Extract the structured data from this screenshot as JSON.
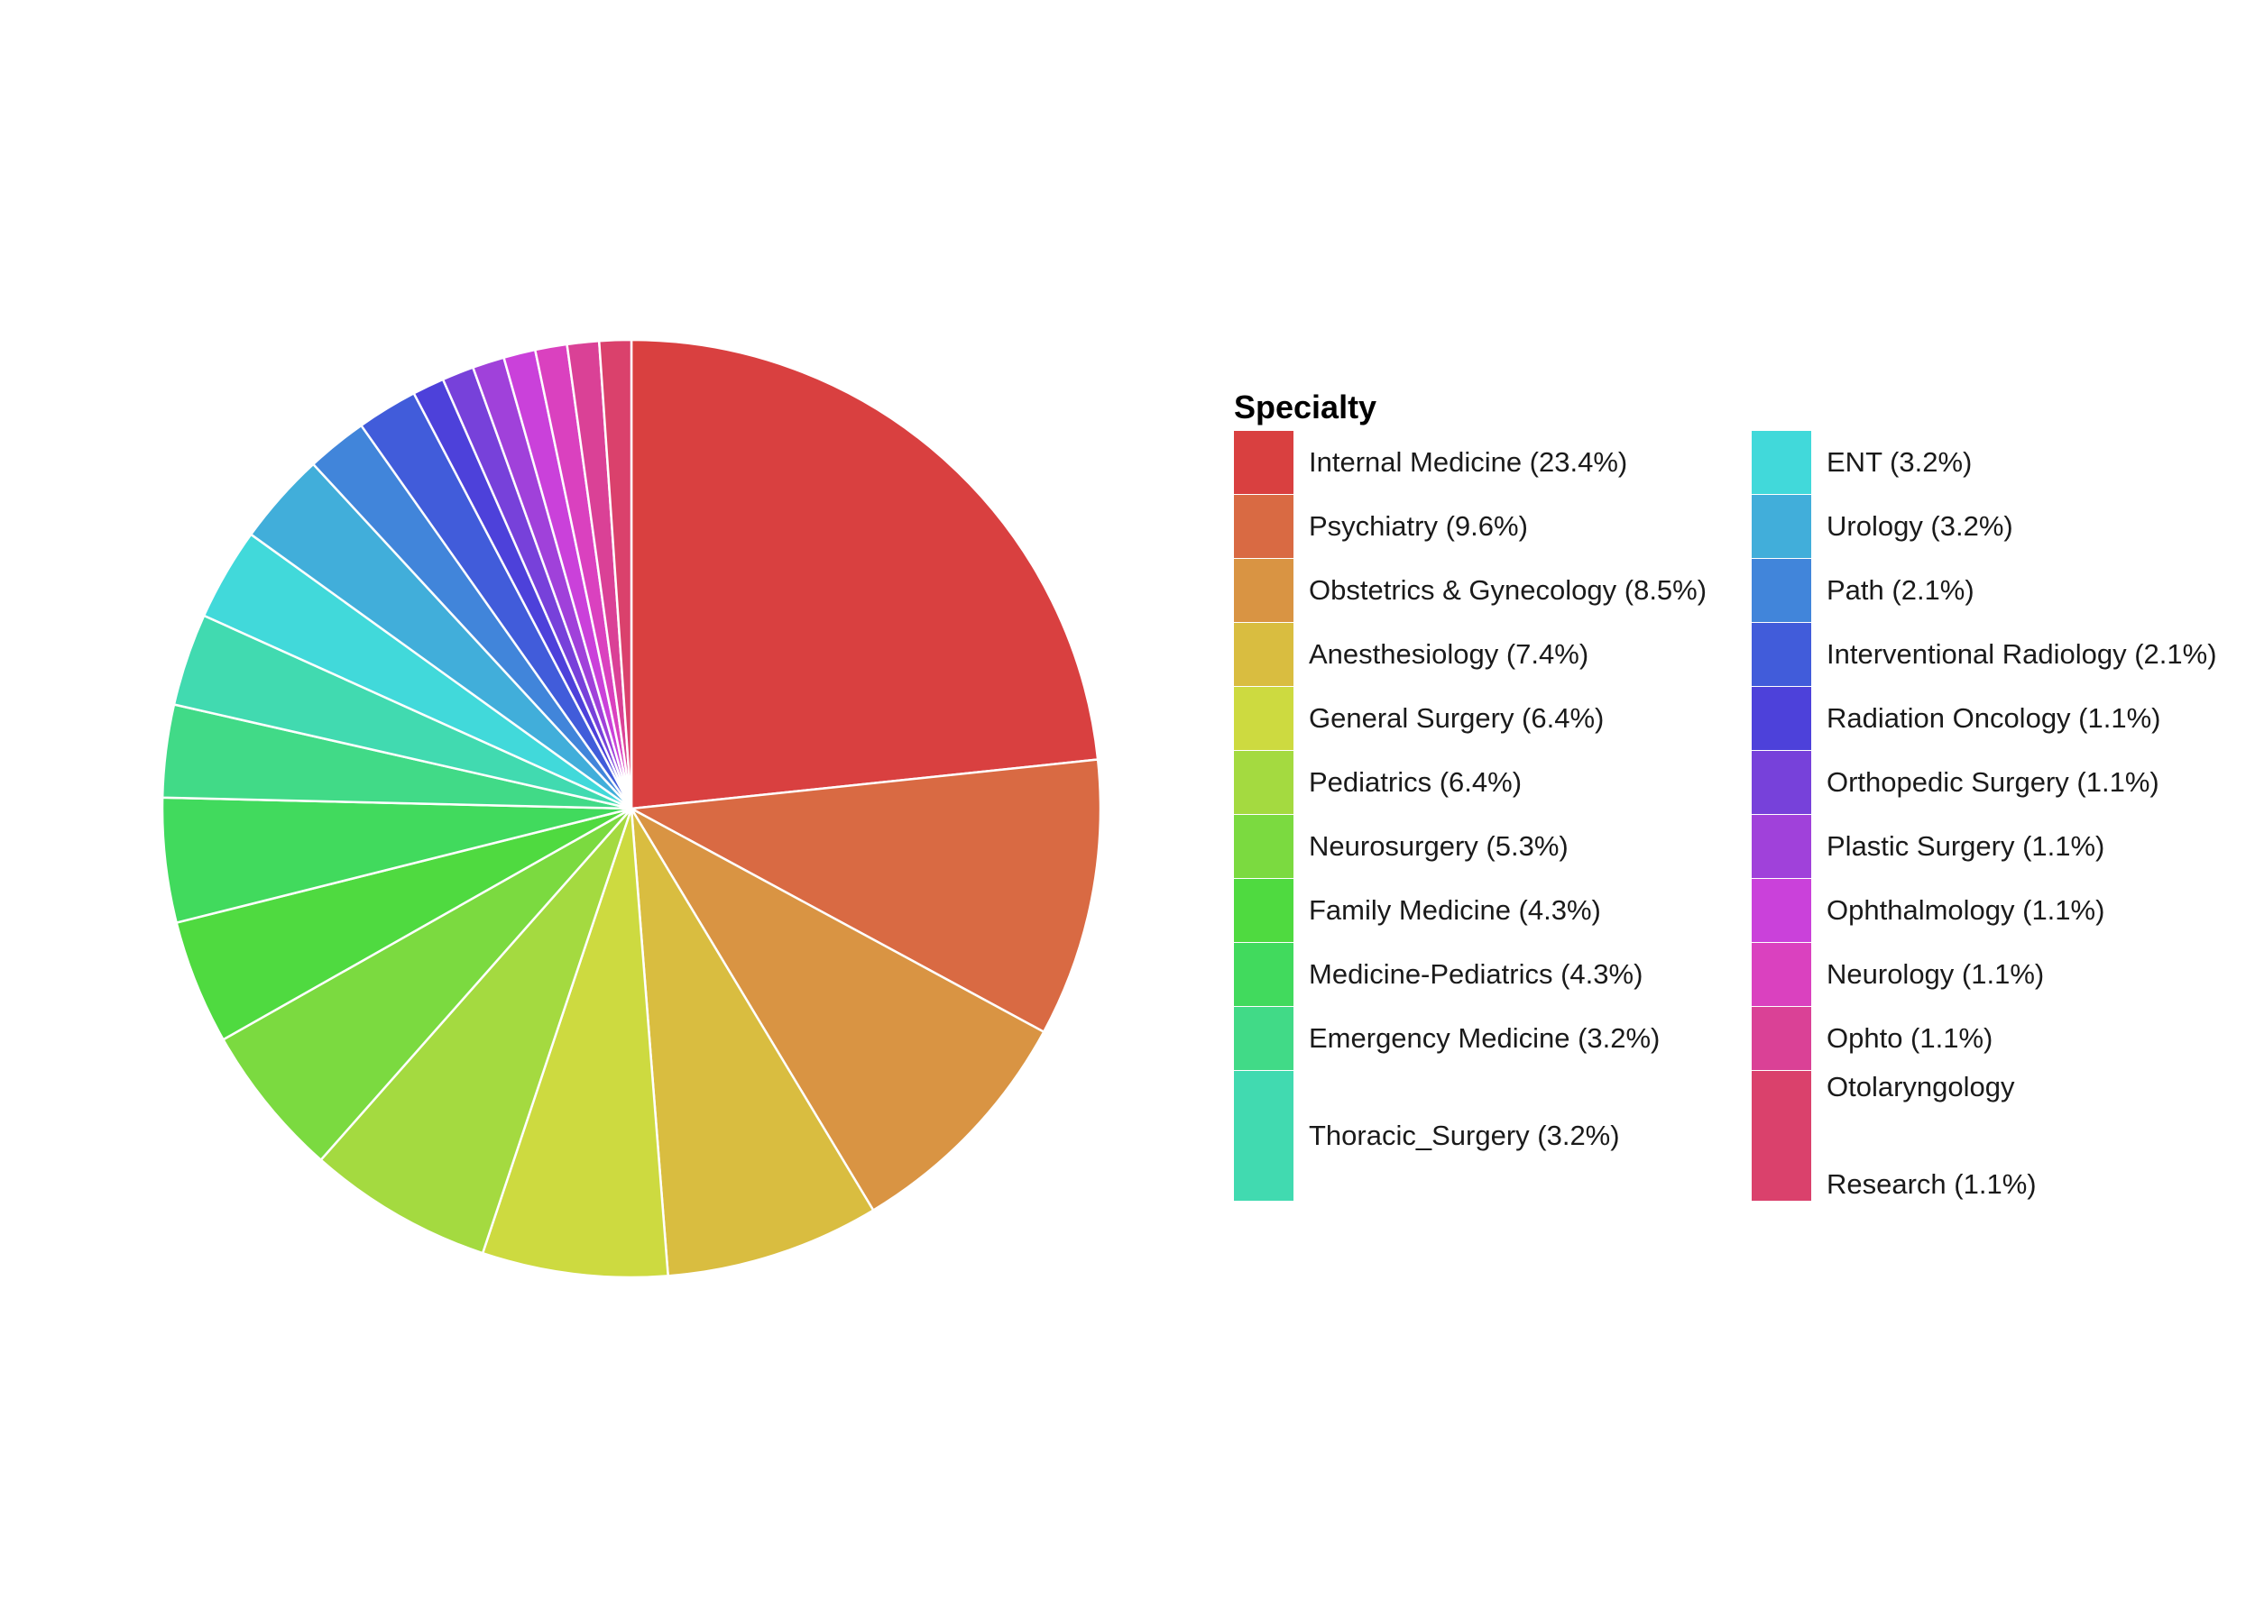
{
  "chart_data": {
    "type": "pie",
    "start_angle": "12 o'clock, clockwise",
    "legend_title": "Specialty",
    "legend_position": "right",
    "slices": [
      {
        "name": "Internal Medicine",
        "label": "Internal Medicine (23.4%)",
        "value": 23.4,
        "color": "#d94040"
      },
      {
        "name": "Psychiatry",
        "label": "Psychiatry (9.6%)",
        "value": 9.6,
        "color": "#d96a43"
      },
      {
        "name": "Obstetrics & Gynecology",
        "label": "Obstetrics & Gynecology (8.5%)",
        "value": 8.5,
        "color": "#d99443"
      },
      {
        "name": "Anesthesiology",
        "label": "Anesthesiology (7.4%)",
        "value": 7.4,
        "color": "#d9bd40"
      },
      {
        "name": "General Surgery",
        "label": "General Surgery (6.4%)",
        "value": 6.4,
        "color": "#cdda40"
      },
      {
        "name": "Pediatrics",
        "label": "Pediatrics (6.4%)",
        "value": 6.4,
        "color": "#a4da40"
      },
      {
        "name": "Neurosurgery",
        "label": "Neurosurgery (5.3%)",
        "value": 5.3,
        "color": "#7bda40"
      },
      {
        "name": "Family Medicine",
        "label": "Family Medicine (4.3%)",
        "value": 4.3,
        "color": "#4fda40"
      },
      {
        "name": "Medicine-Pediatrics",
        "label": "Medicine-Pediatrics (4.3%)",
        "value": 4.3,
        "color": "#41da5d"
      },
      {
        "name": "Emergency Medicine",
        "label": "Emergency Medicine (3.2%)",
        "value": 3.2,
        "color": "#41da87"
      },
      {
        "name": "Thoracic_Surgery",
        "label": "Thoracic_Surgery (3.2%)",
        "value": 3.2,
        "color": "#41dab0"
      },
      {
        "name": "ENT",
        "label": "ENT (3.2%)",
        "value": 3.2,
        "color": "#41d9da"
      },
      {
        "name": "Urology",
        "label": "Urology (3.2%)",
        "value": 3.2,
        "color": "#41aeda"
      },
      {
        "name": "Path",
        "label": "Path (2.1%)",
        "value": 2.1,
        "color": "#4185da"
      },
      {
        "name": "Interventional Radiology",
        "label": "Interventional Radiology (2.1%)",
        "value": 2.1,
        "color": "#415cda"
      },
      {
        "name": "Radiation Oncology",
        "label": "Radiation Oncology (1.1%)",
        "value": 1.1,
        "color": "#4d41da"
      },
      {
        "name": "Orthopedic Surgery",
        "label": "Orthopedic Surgery (1.1%)",
        "value": 1.1,
        "color": "#7741da"
      },
      {
        "name": "Plastic Surgery",
        "label": "Plastic Surgery (1.1%)",
        "value": 1.1,
        "color": "#a041da"
      },
      {
        "name": "Ophthalmology",
        "label": "Ophthalmology (1.1%)",
        "value": 1.1,
        "color": "#ca41da"
      },
      {
        "name": "Neurology",
        "label": "Neurology (1.1%)",
        "value": 1.1,
        "color": "#da41bf"
      },
      {
        "name": "Ophto",
        "label": "Ophto (1.1%)",
        "value": 1.1,
        "color": "#da4196"
      },
      {
        "name": "Otolaryngology Research",
        "label_top": "Otolaryngology",
        "label_bottom": "Research (1.1%)",
        "value": 1.1,
        "color": "#da416c"
      }
    ]
  }
}
